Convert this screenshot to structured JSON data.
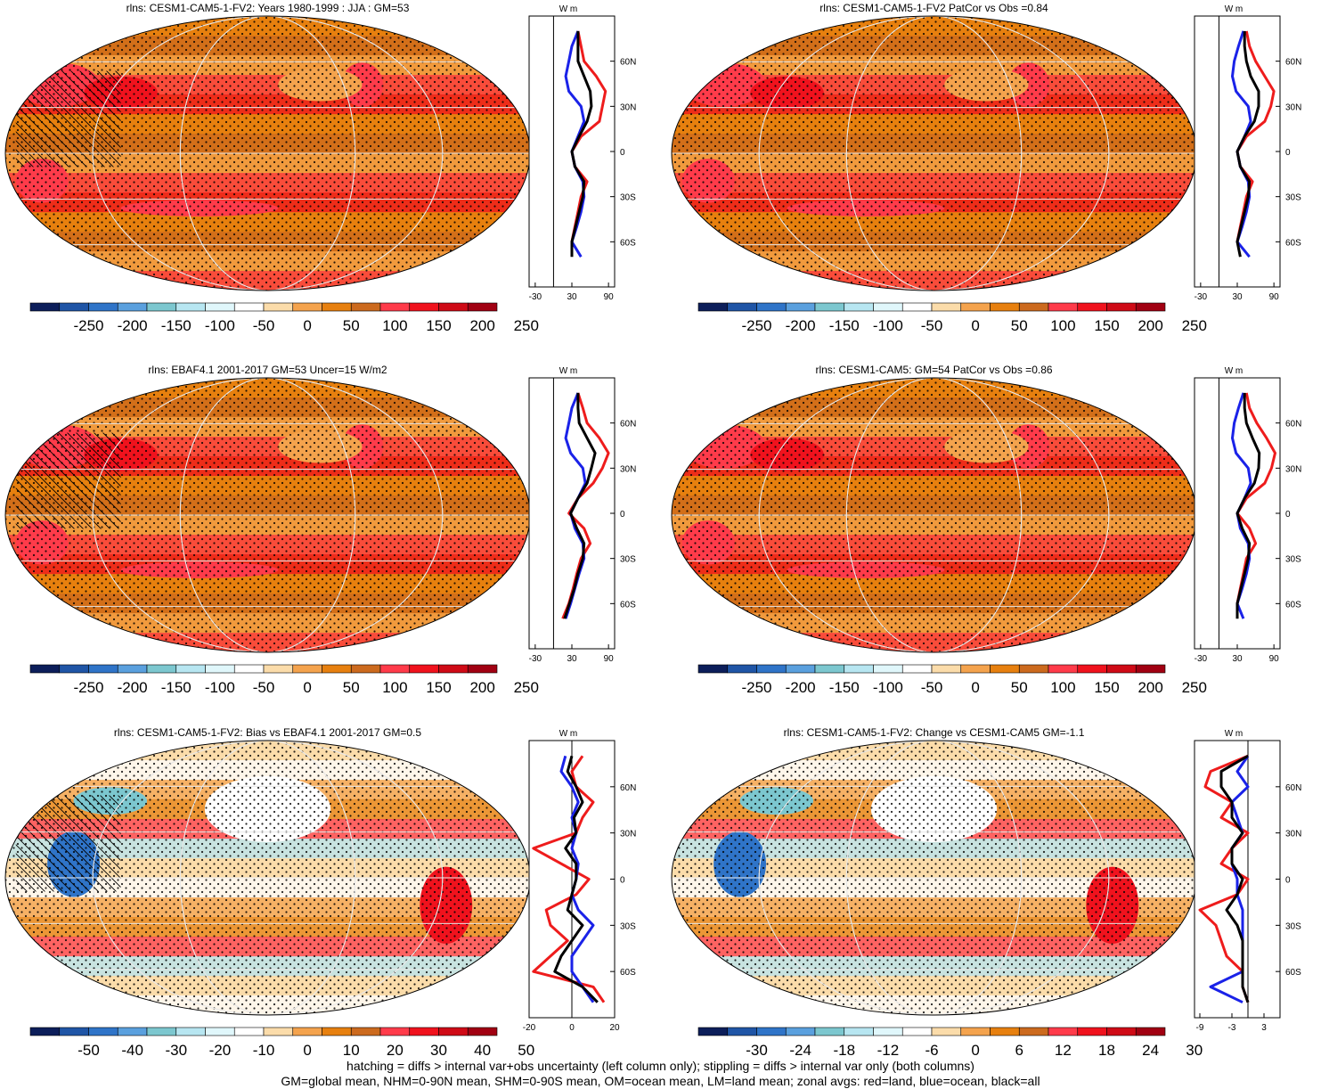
{
  "colors": {
    "pos": [
      "#fbdcaa",
      "#f4a34d",
      "#e7800f",
      "#cc6a1e",
      "#ff3b4a",
      "#f0121d",
      "#cf0a16",
      "#a10012"
    ],
    "neg": [
      "#ffffff",
      "#e0f7fb",
      "#b7e6f1",
      "#7cc7cf",
      "#5aa0de",
      "#2f74c8",
      "#1f55a6",
      "#0c1e5a"
    ],
    "land_curve": "#ee1c1c",
    "ocean_curve": "#1a22e8",
    "all_curve": "#000000"
  },
  "footer": {
    "line1": "hatching = diffs > internal var+obs uncertainty (left column only); stippling = diffs > internal var only (both columns)",
    "line2": "GM=global mean, NHM=0-90N mean, SHM=0-90S mean, OM=ocean mean, LM=land mean; zonal avgs: red=land, blue=ocean, black=all"
  },
  "chart_data": [
    {
      "type": "heatmap",
      "title": "rlns: CESM1-CAM5-1-FV2: Years 1980-1999 : JJA : GM=53",
      "colorbar_labels": [
        "-250",
        "-200",
        "-150",
        "-100",
        "-50",
        "0",
        "50",
        "100",
        "150",
        "200",
        "250"
      ],
      "zonal": {
        "unit_label": "W m",
        "x_ticks": [
          "-30",
          "30",
          "90"
        ],
        "xlim": [
          -40,
          100
        ],
        "lat_labels": [
          "60N",
          "30N",
          "0",
          "30S",
          "60S"
        ],
        "lat_values": [
          60,
          30,
          0,
          -30,
          -60
        ],
        "lat": [
          80,
          70,
          60,
          50,
          40,
          30,
          20,
          10,
          0,
          -10,
          -20,
          -30,
          -40,
          -50,
          -60,
          -70
        ],
        "land": [
          40,
          45,
          50,
          70,
          85,
          80,
          75,
          45,
          30,
          35,
          55,
          45,
          40,
          35,
          30,
          null
        ],
        "ocean": [
          40,
          30,
          25,
          20,
          25,
          45,
          50,
          40,
          30,
          35,
          48,
          50,
          45,
          38,
          30,
          45
        ],
        "all": [
          40,
          40,
          40,
          50,
          60,
          62,
          55,
          42,
          30,
          35,
          50,
          48,
          42,
          36,
          30,
          30
        ]
      }
    },
    {
      "type": "heatmap",
      "title": "rlns: CESM1-CAM5-1-FV2 PatCor vs Obs =0.84",
      "colorbar_labels": [
        "-250",
        "-200",
        "-150",
        "-100",
        "-50",
        "0",
        "50",
        "100",
        "150",
        "200",
        "250"
      ],
      "zonal": {
        "unit_label": "W m",
        "x_ticks": [
          "-30",
          "30",
          "90"
        ],
        "xlim": [
          -40,
          100
        ],
        "lat_labels": [
          "60N",
          "30N",
          "0",
          "30S",
          "60S"
        ],
        "lat_values": [
          60,
          30,
          0,
          -30,
          -60
        ],
        "lat": [
          80,
          70,
          60,
          50,
          40,
          30,
          20,
          10,
          0,
          -10,
          -20,
          -30,
          -40,
          -50,
          -60,
          -70
        ],
        "land": [
          45,
          50,
          60,
          75,
          90,
          85,
          75,
          45,
          30,
          35,
          55,
          45,
          40,
          35,
          30,
          null
        ],
        "ocean": [
          40,
          32,
          25,
          22,
          28,
          48,
          52,
          42,
          30,
          35,
          48,
          50,
          45,
          38,
          30,
          50
        ],
        "all": [
          42,
          42,
          45,
          52,
          65,
          65,
          58,
          42,
          30,
          35,
          50,
          48,
          42,
          36,
          30,
          35
        ]
      }
    },
    {
      "type": "heatmap",
      "title": "rlns: EBAF4.1 2001-2017 GM=53 Uncer=15 W/m2",
      "colorbar_labels": [
        "-250",
        "-200",
        "-150",
        "-100",
        "-50",
        "0",
        "50",
        "100",
        "150",
        "200",
        "250"
      ],
      "zonal": {
        "unit_label": "W m",
        "x_ticks": [
          "-30",
          "30",
          "90"
        ],
        "xlim": [
          -40,
          100
        ],
        "lat_labels": [
          "60N",
          "30N",
          "0",
          "30S",
          "60S"
        ],
        "lat_values": [
          60,
          30,
          0,
          -30,
          -60
        ],
        "lat": [
          80,
          70,
          60,
          50,
          40,
          30,
          20,
          10,
          0,
          -10,
          -20,
          -30,
          -40,
          -50,
          -60,
          -70
        ],
        "land": [
          40,
          48,
          55,
          75,
          90,
          80,
          65,
          40,
          25,
          50,
          60,
          45,
          38,
          32,
          25,
          15
        ],
        "ocean": [
          40,
          30,
          25,
          20,
          28,
          48,
          52,
          40,
          28,
          35,
          48,
          50,
          42,
          35,
          28,
          20
        ],
        "all": [
          40,
          40,
          42,
          55,
          68,
          62,
          55,
          40,
          28,
          38,
          50,
          48,
          40,
          34,
          26,
          18
        ]
      }
    },
    {
      "type": "heatmap",
      "title": "rlns: CESM1-CAM5: GM=54 PatCor vs Obs =0.86",
      "colorbar_labels": [
        "-250",
        "-200",
        "-150",
        "-100",
        "-50",
        "0",
        "50",
        "100",
        "150",
        "200",
        "250"
      ],
      "zonal": {
        "unit_label": "W m",
        "x_ticks": [
          "-30",
          "30",
          "90"
        ],
        "xlim": [
          -40,
          100
        ],
        "lat_labels": [
          "60N",
          "30N",
          "0",
          "30S",
          "60S"
        ],
        "lat_values": [
          60,
          30,
          0,
          -30,
          -60
        ],
        "lat": [
          80,
          70,
          60,
          50,
          40,
          30,
          20,
          10,
          0,
          -10,
          -20,
          -30,
          -40,
          -50,
          -60,
          -70
        ],
        "land": [
          45,
          50,
          62,
          78,
          92,
          86,
          75,
          45,
          30,
          50,
          60,
          45,
          40,
          35,
          30,
          null
        ],
        "ocean": [
          40,
          32,
          25,
          22,
          28,
          48,
          52,
          42,
          30,
          35,
          48,
          50,
          45,
          38,
          30,
          40
        ],
        "all": [
          42,
          42,
          45,
          55,
          66,
          65,
          58,
          42,
          30,
          38,
          50,
          48,
          42,
          36,
          30,
          30
        ]
      }
    },
    {
      "type": "heatmap",
      "title": "rlns: CESM1-CAM5-1-FV2: Bias vs EBAF4.1 2001-2017 GM=0.5",
      "colorbar_labels": [
        "-50",
        "-40",
        "-30",
        "-20",
        "-10",
        "0",
        "10",
        "20",
        "30",
        "40",
        "50"
      ],
      "zonal": {
        "unit_label": "W m",
        "x_ticks": [
          "-20",
          "0",
          "20"
        ],
        "xlim": [
          -20,
          20
        ],
        "lat_labels": [
          "60N",
          "30N",
          "0",
          "30S",
          "60S"
        ],
        "lat_values": [
          60,
          30,
          0,
          -30,
          -60
        ],
        "lat": [
          80,
          70,
          60,
          50,
          40,
          30,
          20,
          10,
          0,
          -10,
          -20,
          -30,
          -40,
          -50,
          -60,
          -70,
          -80
        ],
        "land": [
          5,
          0,
          2,
          10,
          5,
          2,
          -18,
          -5,
          8,
          2,
          -12,
          -10,
          -2,
          -10,
          -18,
          10,
          15
        ],
        "ocean": [
          -3,
          -5,
          0,
          3,
          0,
          2,
          0,
          3,
          2,
          0,
          3,
          10,
          5,
          0,
          0,
          5,
          10
        ],
        "all": [
          0,
          -2,
          2,
          5,
          1,
          2,
          -3,
          2,
          2,
          0,
          -2,
          5,
          0,
          -5,
          -8,
          5,
          12
        ]
      }
    },
    {
      "type": "heatmap",
      "title": "rlns: CESM1-CAM5-1-FV2: Change vs CESM1-CAM5 GM=-1.1",
      "colorbar_labels": [
        "-30",
        "-24",
        "-18",
        "-12",
        "-6",
        "0",
        "6",
        "12",
        "18",
        "24",
        "30"
      ],
      "zonal": {
        "unit_label": "W m",
        "x_ticks": [
          "-9",
          "-3",
          "3"
        ],
        "xlim": [
          -10,
          6
        ],
        "lat_labels": [
          "60N",
          "30N",
          "0",
          "30S",
          "60S"
        ],
        "lat_values": [
          60,
          30,
          0,
          -30,
          -60
        ],
        "lat": [
          80,
          70,
          60,
          50,
          40,
          30,
          20,
          10,
          0,
          -10,
          -20,
          -30,
          -40,
          -50,
          -60,
          -70,
          -80
        ],
        "land": [
          0,
          -7,
          -8,
          -3,
          -5,
          0,
          -3,
          -5,
          0,
          -2,
          -9,
          -6,
          -5,
          -4,
          -1,
          -1,
          0
        ],
        "ocean": [
          0,
          -2,
          0,
          -3,
          -2,
          -1,
          -3,
          -3,
          -2,
          -2,
          -1,
          -1,
          -1,
          -1,
          -1,
          -7,
          -1
        ],
        "all": [
          0,
          -5,
          -5,
          -3,
          -3,
          -1,
          -3,
          -3,
          -1,
          -2,
          -4,
          -2,
          -1,
          -1,
          -1,
          -1,
          0
        ]
      }
    }
  ]
}
